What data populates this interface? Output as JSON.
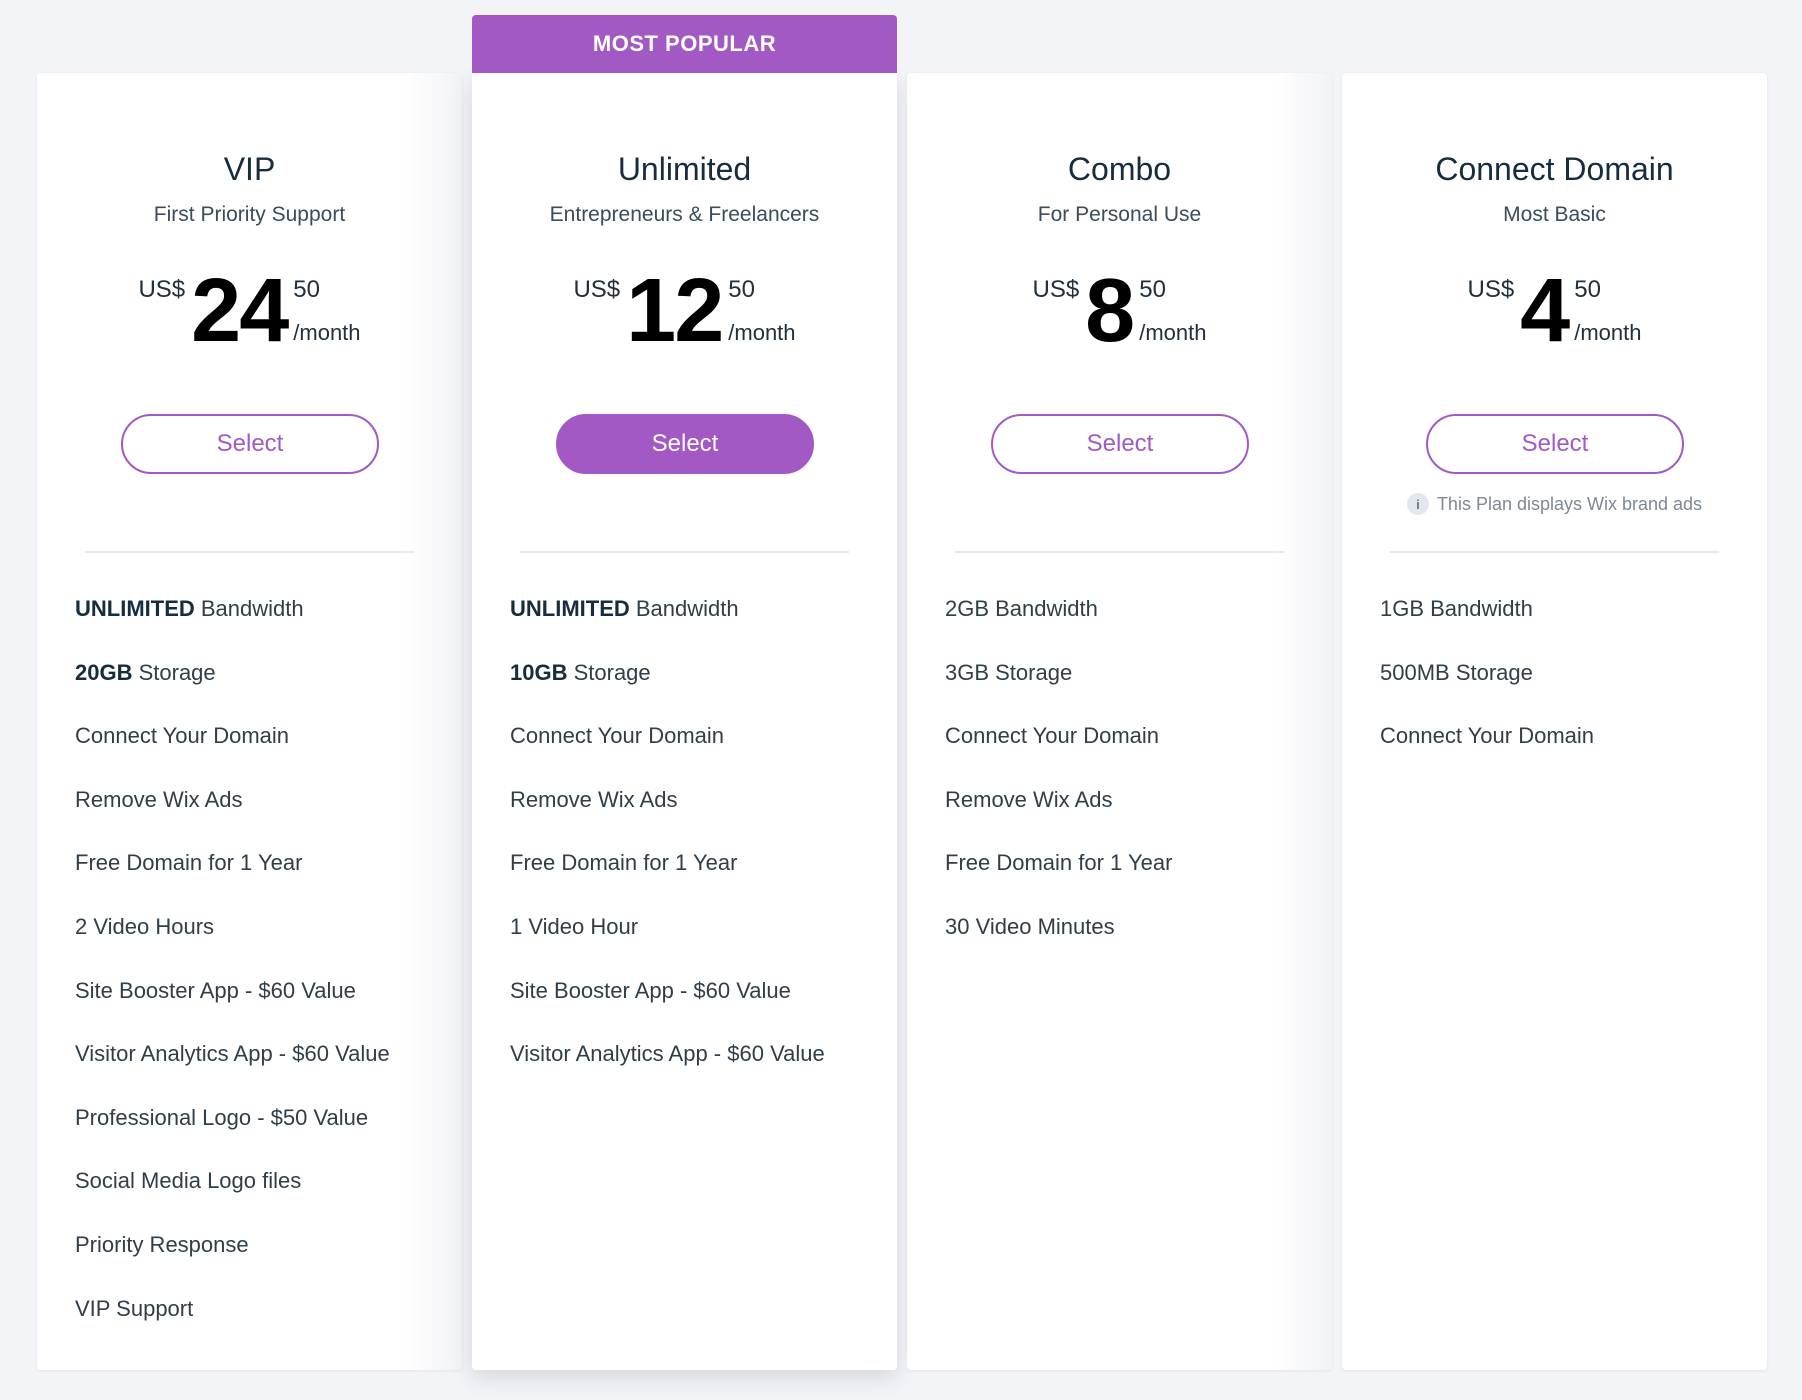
{
  "ribbon": "MOST POPULAR",
  "plans": [
    {
      "name": "VIP",
      "tagline": "First Priority Support",
      "currency": "US$",
      "amount": "24",
      "cents": "50",
      "period": "/month",
      "button": "Select",
      "features": [
        {
          "bold": "UNLIMITED",
          "text": " Bandwidth"
        },
        {
          "bold": "20GB",
          "text": " Storage"
        },
        {
          "bold": "",
          "text": "Connect Your Domain"
        },
        {
          "bold": "",
          "text": "Remove Wix Ads"
        },
        {
          "bold": "",
          "text": "Free Domain for 1 Year"
        },
        {
          "bold": "",
          "text": "2 Video Hours"
        },
        {
          "bold": "",
          "text": "Site Booster App - $60 Value"
        },
        {
          "bold": "",
          "text": "Visitor Analytics App - $60 Value"
        },
        {
          "bold": "",
          "text": "Professional Logo - $50 Value"
        },
        {
          "bold": "",
          "text": "Social Media Logo files"
        },
        {
          "bold": "",
          "text": "Priority Response"
        },
        {
          "bold": "",
          "text": "VIP Support"
        }
      ]
    },
    {
      "name": "Unlimited",
      "tagline": "Entrepreneurs & Freelancers",
      "currency": "US$",
      "amount": "12",
      "cents": "50",
      "period": "/month",
      "button": "Select",
      "features": [
        {
          "bold": "UNLIMITED",
          "text": " Bandwidth"
        },
        {
          "bold": "10GB",
          "text": " Storage"
        },
        {
          "bold": "",
          "text": "Connect Your Domain"
        },
        {
          "bold": "",
          "text": "Remove Wix Ads"
        },
        {
          "bold": "",
          "text": "Free Domain for 1 Year"
        },
        {
          "bold": "",
          "text": "1 Video Hour"
        },
        {
          "bold": "",
          "text": "Site Booster App - $60 Value"
        },
        {
          "bold": "",
          "text": "Visitor Analytics App - $60 Value"
        }
      ]
    },
    {
      "name": "Combo",
      "tagline": "For Personal Use",
      "currency": "US$",
      "amount": "8",
      "cents": "50",
      "period": "/month",
      "button": "Select",
      "features": [
        {
          "bold": "",
          "text": "2GB Bandwidth"
        },
        {
          "bold": "",
          "text": "3GB Storage"
        },
        {
          "bold": "",
          "text": "Connect Your Domain"
        },
        {
          "bold": "",
          "text": "Remove Wix Ads"
        },
        {
          "bold": "",
          "text": "Free Domain for 1 Year"
        },
        {
          "bold": "",
          "text": "30 Video Minutes"
        }
      ]
    },
    {
      "name": "Connect Domain",
      "tagline": "Most Basic",
      "currency": "US$",
      "amount": "4",
      "cents": "50",
      "period": "/month",
      "button": "Select",
      "ads_note": "This Plan displays Wix brand ads",
      "info_icon": "info-icon",
      "features": [
        {
          "bold": "",
          "text": "1GB Bandwidth"
        },
        {
          "bold": "",
          "text": "500MB Storage"
        },
        {
          "bold": "",
          "text": "Connect Your Domain"
        }
      ]
    }
  ],
  "colors": {
    "accent": "#a259c4",
    "background": "#f3f4f8",
    "card": "#ffffff",
    "text": "#20303c"
  }
}
